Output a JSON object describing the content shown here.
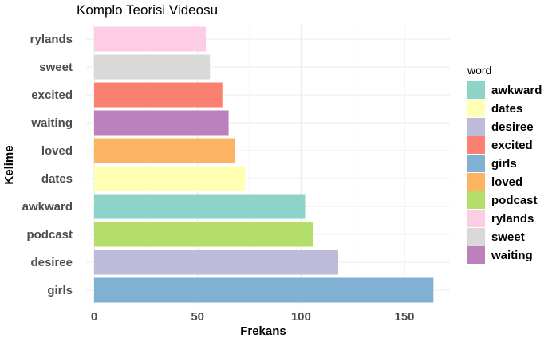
{
  "chart_data": {
    "type": "bar",
    "orientation": "horizontal",
    "title": "Komplo Teorisi Videosu",
    "xlabel": "Frekans",
    "ylabel": "Kelime",
    "xlim": [
      0,
      172
    ],
    "x_ticks": [
      0,
      50,
      100,
      150
    ],
    "grid": true,
    "categories": [
      "rylands",
      "sweet",
      "excited",
      "waiting",
      "loved",
      "dates",
      "awkward",
      "podcast",
      "desiree",
      "girls"
    ],
    "values": [
      54,
      56,
      62,
      65,
      68,
      73,
      102,
      106,
      118,
      164
    ],
    "colors": {
      "awkward": "#8dd3c7",
      "dates": "#ffffb3",
      "desiree": "#bebada",
      "excited": "#fb8072",
      "girls": "#80b1d3",
      "loved": "#fdb462",
      "podcast": "#b3de69",
      "rylands": "#fccde5",
      "sweet": "#d9d9d9",
      "waiting": "#bc80bd"
    },
    "legend": {
      "title": "word",
      "placement": "right",
      "entries": [
        "awkward",
        "dates",
        "desiree",
        "excited",
        "girls",
        "loved",
        "podcast",
        "rylands",
        "sweet",
        "waiting"
      ]
    }
  }
}
